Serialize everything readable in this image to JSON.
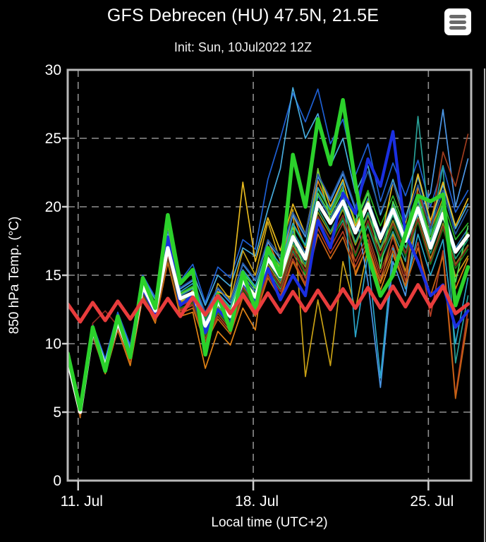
{
  "header": {
    "title": "GFS Debrecen (HU) 47.5N, 21.5E",
    "subtitle": "Init: Sun, 10Jul2022 12Z"
  },
  "menu": {
    "icon": "hamburger-icon"
  },
  "colors": {
    "background": "#000000",
    "frame": "#b8b8b8",
    "grid": "#8f8f8f",
    "tick": "#d0d0d0",
    "text": "#ffffff",
    "ensemble_mean": "#ffffff",
    "operational": "#2bd12b",
    "control": "#1a2fe0",
    "climate_mean": "#e83c3c"
  },
  "chart_data": {
    "type": "line",
    "title": "GFS Debrecen (HU) 47.5N, 21.5E",
    "subtitle": "Init: Sun, 10Jul2022 12Z",
    "xlabel": "Local time (UTC+2)",
    "ylabel": "850 hPa Temp. (°C)",
    "ylim": [
      0,
      30
    ],
    "y_ticks": [
      0,
      5,
      10,
      15,
      20,
      25,
      30
    ],
    "grid": {
      "dash": "10 7",
      "color": "#8f8f8f"
    },
    "legend": "none",
    "time_step_hours": 12,
    "x_ticks": [
      {
        "label": "11. Jul",
        "pos": 0.833
      },
      {
        "label": "18. Jul",
        "pos": 14.833
      },
      {
        "label": "25. Jul",
        "pos": 28.833
      }
    ],
    "series": [
      {
        "name": "ensemble-mean",
        "color": "#ffffff",
        "width": 5,
        "values": [
          8.8,
          5.0,
          11.0,
          8.3,
          11.6,
          9.1,
          14.2,
          12.4,
          17.0,
          13.3,
          13.7,
          11.3,
          13.0,
          12.0,
          14.6,
          13.4,
          16.2,
          14.9,
          17.8,
          16.2,
          20.3,
          18.8,
          20.4,
          18.1,
          20.2,
          17.7,
          19.8,
          17.5,
          19.9,
          17.0,
          19.5,
          16.7,
          17.9
        ]
      },
      {
        "name": "operational",
        "color": "#2bd12b",
        "width": 5.5,
        "values": [
          9.3,
          5.2,
          11.2,
          8.0,
          12.0,
          9.0,
          14.8,
          12.6,
          19.4,
          14.4,
          15.4,
          9.2,
          13.6,
          11.0,
          15.2,
          12.5,
          17.0,
          15.0,
          23.8,
          20.0,
          26.4,
          23.1,
          27.8,
          21.7,
          16.5,
          13.5,
          15.0,
          18.0,
          20.8,
          20.4,
          20.9,
          12.8,
          15.6
        ]
      },
      {
        "name": "control",
        "color": "#1a2fe0",
        "width": 4.2,
        "values": [
          9.0,
          5.0,
          10.9,
          8.2,
          11.5,
          9.2,
          14.0,
          12.2,
          17.8,
          12.8,
          13.5,
          10.8,
          12.5,
          11.5,
          14.5,
          13.0,
          15.5,
          13.2,
          15.0,
          13.5,
          19.0,
          17.0,
          21.0,
          19.5,
          23.5,
          21.5,
          25.5,
          18.0,
          16.0,
          13.5,
          14.3,
          11.2,
          12.4
        ]
      },
      {
        "name": "climate-mean",
        "color": "#e83c3c",
        "width": 5,
        "values": [
          12.9,
          11.6,
          13.0,
          11.7,
          13.1,
          11.8,
          13.2,
          11.9,
          13.3,
          12.0,
          13.4,
          12.1,
          13.5,
          12.2,
          13.6,
          12.2,
          13.7,
          12.3,
          13.8,
          12.4,
          13.9,
          12.5,
          14.0,
          12.6,
          14.1,
          12.6,
          14.2,
          12.7,
          14.3,
          12.7,
          14.2,
          12.2,
          12.9
        ]
      }
    ],
    "members": [
      {
        "color": "#1e5fd2",
        "values": [
          9.2,
          5.4,
          11.4,
          8.9,
          12.3,
          9.9,
          15.0,
          13.4,
          18.2,
          14.6,
          15.8,
          13.0,
          15.6,
          14.8,
          17.6,
          16.9,
          22.0,
          25.0,
          28.3,
          26.2,
          28.6,
          24.6,
          26.4,
          22.3,
          24.6,
          20.4,
          23.2,
          20.8,
          23.4,
          20.0,
          23.0,
          19.6,
          21.2
        ]
      },
      {
        "color": "#e08214",
        "values": [
          8.5,
          4.6,
          10.7,
          7.8,
          11.0,
          8.4,
          13.4,
          11.5,
          16.0,
          12.0,
          12.3,
          8.2,
          10.9,
          9.9,
          12.6,
          11.0,
          17.5,
          15.5,
          19.5,
          17.0,
          21.9,
          19.6,
          21.5,
          15.0,
          17.3,
          13.9,
          16.5,
          14.2,
          21.5,
          18.3,
          20.6,
          14.0,
          16.2
        ]
      },
      {
        "color": "#28b428",
        "values": [
          8.9,
          5.1,
          11.1,
          8.4,
          11.8,
          9.3,
          14.5,
          12.7,
          17.4,
          13.7,
          14.2,
          11.8,
          13.6,
          12.6,
          15.3,
          14.1,
          17.0,
          15.7,
          18.7,
          17.1,
          21.3,
          19.7,
          21.4,
          19.0,
          21.2,
          18.6,
          20.8,
          18.4,
          20.9,
          17.9,
          20.5,
          17.6,
          18.8
        ]
      },
      {
        "color": "#c8a014",
        "values": [
          8.7,
          4.8,
          10.9,
          8.1,
          11.4,
          8.8,
          14.0,
          12.1,
          16.6,
          12.9,
          13.9,
          11.0,
          14.4,
          13.2,
          16.8,
          15.0,
          18.9,
          16.0,
          19.8,
          7.6,
          13.2,
          8.4,
          16.0,
          12.5,
          17.0,
          14.5,
          18.0,
          15.3,
          19.2,
          16.2,
          18.6,
          14.9,
          16.4
        ]
      },
      {
        "color": "#28a096",
        "values": [
          8.8,
          5.0,
          10.8,
          8.2,
          11.5,
          9.0,
          13.8,
          12.0,
          16.4,
          12.8,
          13.2,
          10.8,
          12.4,
          11.4,
          14.0,
          12.8,
          15.4,
          14.0,
          16.8,
          15.2,
          19.2,
          17.6,
          19.0,
          16.6,
          18.6,
          16.0,
          18.2,
          16.0,
          26.6,
          18.0,
          23.0,
          8.6,
          13.5
        ]
      },
      {
        "color": "#b43c23",
        "values": [
          8.6,
          4.8,
          10.5,
          7.9,
          11.2,
          8.7,
          13.5,
          11.7,
          16.2,
          12.4,
          12.8,
          10.2,
          12.0,
          10.9,
          13.6,
          12.2,
          15.0,
          13.5,
          16.2,
          14.4,
          18.4,
          16.6,
          18.2,
          15.6,
          17.6,
          14.8,
          17.2,
          14.6,
          17.4,
          12.0,
          16.8,
          6.2,
          12.5
        ]
      },
      {
        "color": "#4b96e6",
        "values": [
          9.0,
          5.2,
          11.2,
          8.6,
          12.0,
          9.5,
          14.6,
          12.9,
          17.6,
          14.0,
          14.6,
          12.2,
          14.0,
          13.0,
          15.8,
          14.6,
          17.4,
          16.2,
          19.4,
          17.8,
          22.2,
          20.4,
          22.4,
          19.8,
          14.5,
          6.8,
          16.0,
          13.5,
          19.5,
          21.0,
          27.1,
          20.0,
          23.5
        ]
      },
      {
        "color": "#8c9b19",
        "values": [
          8.7,
          4.9,
          10.8,
          8.0,
          11.3,
          8.9,
          13.9,
          12.2,
          16.5,
          13.0,
          13.4,
          11.0,
          12.7,
          11.6,
          14.2,
          13.0,
          15.8,
          14.4,
          17.2,
          15.6,
          19.6,
          18.0,
          19.8,
          17.2,
          19.4,
          16.8,
          19.0,
          16.6,
          19.2,
          16.0,
          18.8,
          15.8,
          17.2
        ]
      },
      {
        "color": "#46aadc",
        "values": [
          9.1,
          5.3,
          11.3,
          8.7,
          12.1,
          9.7,
          14.9,
          13.2,
          18.0,
          14.4,
          15.2,
          12.8,
          15.0,
          14.2,
          17.0,
          16.4,
          19.8,
          22.8,
          28.7,
          25.0,
          26.8,
          23.0,
          25.0,
          21.0,
          23.0,
          19.4,
          22.0,
          19.2,
          22.2,
          18.8,
          21.6,
          18.4,
          20.2
        ]
      },
      {
        "color": "#2f7fc0",
        "values": [
          8.9,
          5.1,
          11.0,
          8.4,
          11.7,
          9.2,
          14.3,
          12.5,
          17.2,
          13.5,
          14.0,
          11.6,
          13.3,
          12.3,
          15.0,
          13.8,
          16.6,
          15.3,
          18.2,
          16.6,
          20.8,
          19.2,
          20.8,
          18.4,
          20.6,
          18.0,
          20.2,
          17.8,
          20.4,
          17.4,
          20.0,
          17.0,
          18.4
        ]
      },
      {
        "color": "#50dc50",
        "values": [
          8.8,
          5.0,
          11.1,
          8.3,
          11.7,
          9.2,
          14.4,
          12.6,
          17.3,
          13.6,
          14.1,
          9.8,
          13.5,
          12.5,
          15.2,
          14.0,
          16.8,
          15.5,
          18.5,
          14.8,
          21.0,
          19.4,
          21.2,
          18.8,
          21.0,
          15.5,
          20.4,
          18.0,
          20.6,
          17.6,
          20.2,
          14.5,
          18.6
        ]
      },
      {
        "color": "#a03c1e",
        "values": [
          8.6,
          4.7,
          10.6,
          7.9,
          11.1,
          8.6,
          13.6,
          11.8,
          16.1,
          12.5,
          12.9,
          10.4,
          12.2,
          11.1,
          13.8,
          12.4,
          15.2,
          13.8,
          16.6,
          14.8,
          18.8,
          17.0,
          18.8,
          16.0,
          18.0,
          15.2,
          17.8,
          15.0,
          21.0,
          18.5,
          24.0,
          21.5,
          25.3
        ]
      },
      {
        "color": "#147814",
        "values": [
          8.7,
          4.8,
          10.7,
          8.0,
          11.2,
          8.8,
          13.7,
          11.9,
          16.3,
          12.6,
          13.0,
          10.6,
          12.3,
          11.2,
          14.0,
          12.6,
          15.5,
          14.1,
          16.9,
          15.1,
          19.0,
          17.3,
          19.2,
          16.4,
          18.8,
          16.2,
          18.6,
          16.4,
          18.9,
          15.8,
          18.4,
          15.5,
          16.9
        ]
      },
      {
        "color": "#e6b91e",
        "values": [
          8.8,
          4.9,
          10.9,
          8.2,
          11.5,
          9.0,
          14.1,
          12.3,
          16.8,
          13.1,
          13.6,
          11.2,
          13.8,
          13.4,
          21.8,
          16.0,
          19.2,
          16.8,
          20.2,
          18.0,
          22.6,
          20.0,
          22.0,
          18.6,
          20.4,
          17.4,
          21.8,
          18.8,
          22.4,
          19.0,
          21.8,
          18.6,
          20.6
        ]
      },
      {
        "color": "#1ea078",
        "values": [
          8.8,
          5.0,
          10.9,
          8.3,
          11.6,
          9.1,
          14.0,
          12.2,
          16.7,
          13.2,
          13.5,
          11.1,
          12.8,
          11.8,
          14.4,
          13.2,
          16.0,
          14.6,
          17.4,
          15.8,
          19.9,
          18.2,
          20.0,
          17.4,
          19.6,
          17.0,
          19.4,
          17.0,
          19.6,
          16.6,
          19.2,
          16.2,
          17.6
        ]
      },
      {
        "color": "#2aa4c8",
        "values": [
          8.9,
          5.1,
          11.1,
          8.5,
          11.9,
          9.4,
          14.4,
          12.7,
          17.5,
          13.8,
          14.4,
          12.0,
          13.7,
          12.7,
          15.4,
          14.2,
          17.0,
          15.8,
          18.8,
          17.2,
          21.4,
          19.8,
          21.8,
          10.5,
          16.5,
          7.5,
          17.0,
          14.0,
          18.0,
          15.0,
          17.6,
          10.0,
          14.8
        ]
      },
      {
        "color": "#6ec832",
        "values": [
          8.8,
          5.0,
          11.0,
          8.3,
          11.6,
          9.1,
          14.2,
          12.4,
          18.6,
          13.4,
          13.8,
          11.4,
          13.1,
          12.1,
          14.8,
          13.6,
          16.4,
          15.0,
          18.0,
          16.4,
          22.8,
          19.0,
          20.6,
          18.2,
          20.3,
          17.8,
          20.0,
          17.6,
          20.1,
          17.2,
          19.8,
          16.8,
          18.1
        ]
      },
      {
        "color": "#c86414",
        "values": [
          8.6,
          4.8,
          10.6,
          7.9,
          11.1,
          8.6,
          13.4,
          11.6,
          15.9,
          12.2,
          12.6,
          10.0,
          11.8,
          10.7,
          13.4,
          12.0,
          14.8,
          13.3,
          16.0,
          14.2,
          18.0,
          16.2,
          17.8,
          15.2,
          17.2,
          14.4,
          16.8,
          14.2,
          17.0,
          13.5,
          16.4,
          6.0,
          11.8
        ]
      },
      {
        "color": "#8c2820",
        "values": [
          8.7,
          5.2,
          11.5,
          12.4,
          11.3,
          8.8,
          13.8,
          12.0,
          16.4,
          12.8,
          13.1,
          10.7,
          12.5,
          11.4,
          14.1,
          12.8,
          15.6,
          14.2,
          17.0,
          15.3,
          19.3,
          17.6,
          19.4,
          16.6,
          19.0,
          16.4,
          18.8,
          16.6,
          19.1,
          16.0,
          18.6,
          15.7,
          17.1
        ]
      },
      {
        "color": "#2456a0",
        "values": [
          8.9,
          5.1,
          11.2,
          8.5,
          11.8,
          9.3,
          14.5,
          12.8,
          17.7,
          14.1,
          14.7,
          12.3,
          14.1,
          13.1,
          15.9,
          14.7,
          17.6,
          16.4,
          19.6,
          18.0,
          22.4,
          20.6,
          22.6,
          20.0,
          22.6,
          19.6,
          21.8,
          19.0,
          21.6,
          18.4,
          21.2,
          18.0,
          19.8
        ]
      }
    ]
  }
}
